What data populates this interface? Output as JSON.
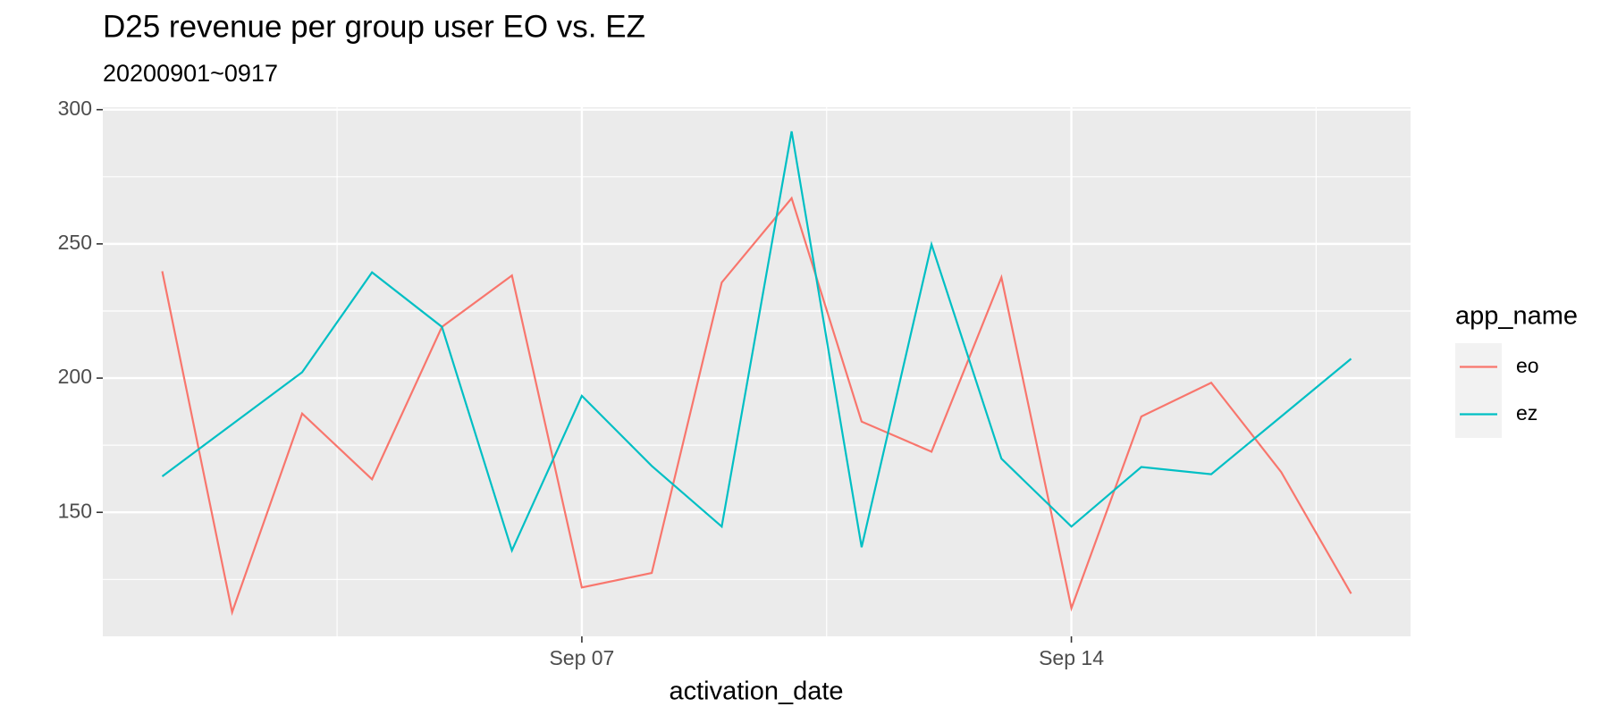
{
  "chart_data": {
    "type": "line",
    "title": "D25 revenue per group user EO vs. EZ",
    "subtitle": "20200901~0917",
    "x_label": "activation_date",
    "legend_title": "app_name",
    "x": [
      "Sep 01",
      "Sep 02",
      "Sep 03",
      "Sep 04",
      "Sep 05",
      "Sep 06",
      "Sep 07",
      "Sep 08",
      "Sep 09",
      "Sep 10",
      "Sep 11",
      "Sep 12",
      "Sep 13",
      "Sep 14",
      "Sep 15",
      "Sep 16",
      "Sep 17",
      "Sep 18"
    ],
    "xticks": [
      "Sep 07",
      "Sep 14"
    ],
    "series": [
      {
        "name": "eo",
        "color": "#F8766D",
        "values": [
          239.8,
          112.8,
          186.8,
          162.3,
          219.1,
          238.2,
          122.0,
          127.4,
          235.6,
          267.0,
          183.8,
          172.6,
          237.5,
          114.3,
          185.7,
          198.3,
          165.0,
          119.7
        ]
      },
      {
        "name": "ez",
        "color": "#00BFC4",
        "values": [
          163.4,
          182.8,
          202.2,
          239.4,
          219.1,
          135.8,
          193.4,
          167.3,
          144.7,
          291.9,
          137.0,
          249.8,
          170.0,
          144.7,
          166.9,
          164.2,
          185.7,
          207.2
        ]
      }
    ],
    "ylim": [
      103.8,
      300.9
    ],
    "yticks": [
      150,
      200,
      250,
      300
    ],
    "grid": true,
    "legend": "right"
  }
}
